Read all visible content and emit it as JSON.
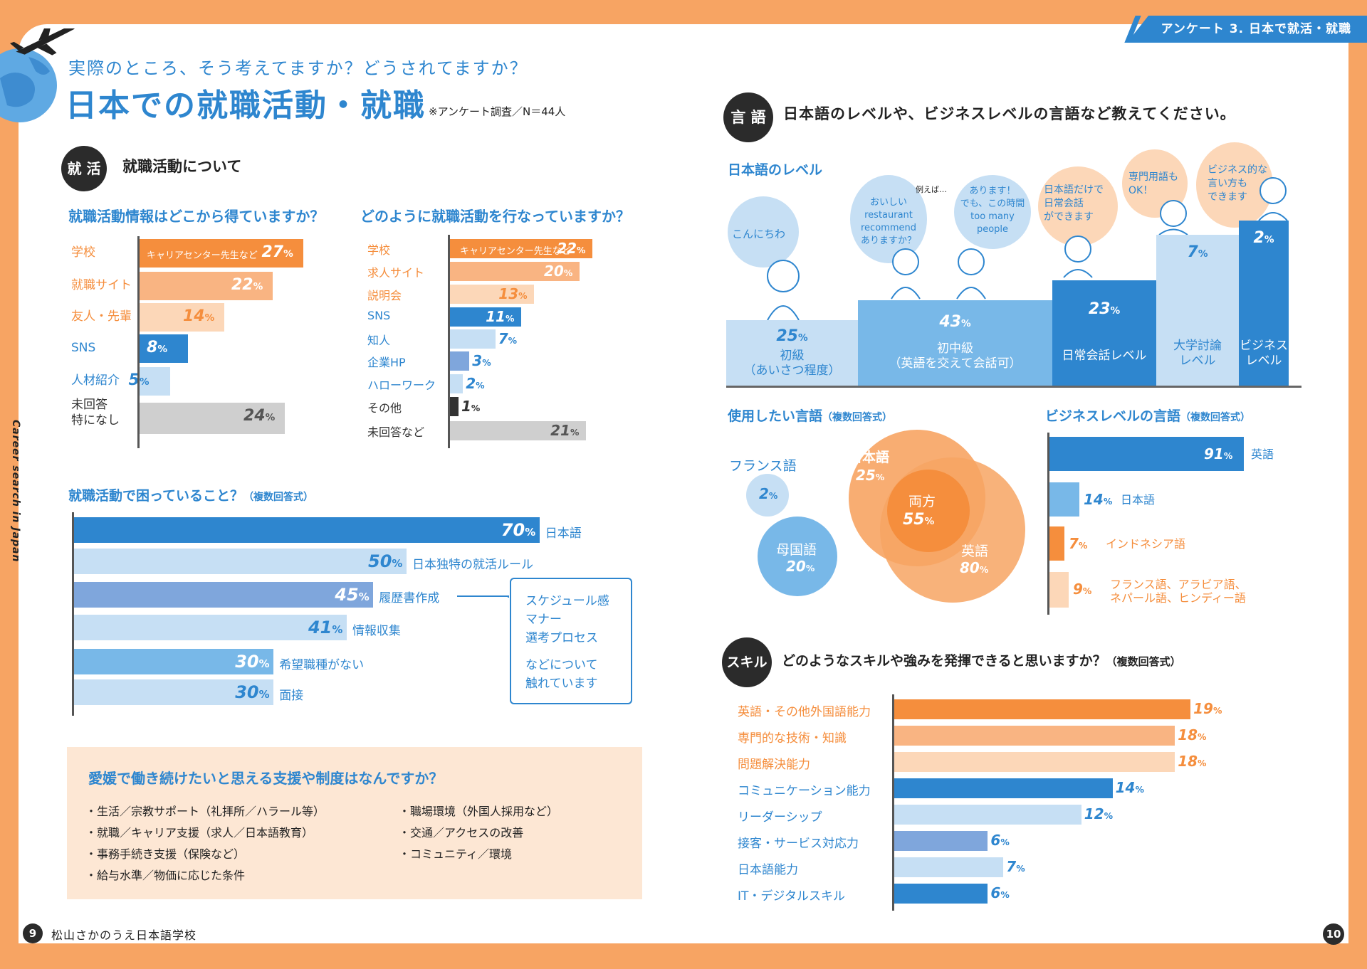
{
  "header": {
    "section_tag": "アンケート 3. 日本で就活・就職"
  },
  "left": {
    "subtitle": "実際のところ、そう考えてますか？どうされてますか？",
    "title": "日本での就職活動・就職",
    "note": "※アンケート調査／N＝44人",
    "side_text": "Career search in Japan",
    "section1": {
      "badge": "就 活",
      "title": "就職活動について"
    },
    "footer": {
      "page": "9",
      "school": "松山さかのうえ日本語学校"
    }
  },
  "right": {
    "lang_badge": "言 語",
    "lang_question": "日本語のレベルや、ビジネスレベルの言語など教えてください。",
    "skill_badge": "スキル",
    "skill_question": "どのようなスキルや強みを発揮できると思いますか？",
    "skill_question_note": "（複数回答式）",
    "footer_page": "10"
  },
  "speech": {
    "b1": "こんにちわ",
    "b2": "おいしい\nrestaurant\nrecommend\nありますか？",
    "b2_pre": "例えば…",
    "b3": "あります！\nでも、この時間\ntoo many\npeople",
    "b4": "日本語だけで\n日常会話\nができます",
    "b5": "専門用語も\nOK！",
    "b6": "ビジネス的な\n言い方も\nできます"
  },
  "aside": {
    "lines": [
      "スケジュール感",
      "マナー",
      "選考プロセス"
    ],
    "footer_lines": [
      "などについて",
      "触れています"
    ]
  },
  "support": {
    "title": "愛媛で働き続けたいと思える支援や制度はなんですか？",
    "col1": [
      "・生活／宗教サポート（礼拝所／ハラール等）",
      "・就職／キャリア支援（求人／日本語教育）",
      "・事務手続き支援（保険など）",
      "・給与水準／物価に応じた条件"
    ],
    "col2": [
      "・職場環境（外国人採用など）",
      "・交通／アクセスの改善",
      "・コミュニティ／環境"
    ]
  },
  "colors": {
    "orange": "#F58E3D",
    "orange_mid": "#F9B482",
    "orange_light": "#FCD7B8",
    "blue": "#2E86CF",
    "blue_mid": "#78B8E8",
    "blue_light": "#C6DFF4",
    "blue_lav": "#7FA6DC",
    "gray": "#CFCFCF",
    "black": "#333333"
  },
  "chart_data": [
    {
      "type": "bar",
      "title": "就職活動情報はどこから得ていますか？",
      "unit": "%",
      "categories": [
        "学校",
        "就職サイト",
        "友人・先輩",
        "SNS",
        "人材紹介",
        "未回答\n特になし"
      ],
      "values": [
        27,
        22,
        14,
        8,
        5,
        24
      ],
      "annotations": {
        "学校": "キャリアセンター先生など"
      }
    },
    {
      "type": "bar",
      "title": "どのように就職活動を行なっていますか？",
      "unit": "%",
      "categories": [
        "学校",
        "求人サイト",
        "説明会",
        "SNS",
        "知人",
        "企業HP",
        "ハローワーク",
        "その他",
        "未回答など"
      ],
      "values": [
        22,
        20,
        13,
        11,
        7,
        3,
        2,
        1,
        21
      ],
      "annotations": {
        "学校": "キャリアセンター先生など"
      }
    },
    {
      "type": "bar",
      "title": "就職活動で困っていること？",
      "title_note": "（複数回答式）",
      "unit": "%",
      "categories": [
        "日本語",
        "日本独特の就活ルール",
        "履歴書作成",
        "情報収集",
        "希望職種がない",
        "面接"
      ],
      "values": [
        70,
        50,
        45,
        41,
        30,
        30
      ]
    },
    {
      "type": "bar",
      "title": "日本語のレベル",
      "unit": "%",
      "categories": [
        "初級\n（あいさつ程度）",
        "初中級\n（英語を交えて会話可）",
        "日常会話レベル",
        "大学討論\nレベル",
        "ビジネス\nレベル"
      ],
      "values": [
        25,
        43,
        23,
        7,
        2
      ]
    },
    {
      "type": "venn",
      "title": "使用したい言語",
      "title_note": "（複数回答式）",
      "unit": "%",
      "sets": [
        {
          "name": "フランス語",
          "value": 2
        },
        {
          "name": "母国語",
          "value": 20
        },
        {
          "name": "日本語",
          "value": 25
        },
        {
          "name": "英語",
          "value": 80
        },
        {
          "name": "両方",
          "value": 55
        }
      ]
    },
    {
      "type": "bar",
      "title": "ビジネスレベルの言語",
      "title_note": "（複数回答式）",
      "unit": "%",
      "categories": [
        "英語",
        "日本語",
        "インドネシア語",
        "フランス語、アラビア語、\nネパール語、ヒンディー語"
      ],
      "values": [
        91,
        14,
        7,
        9
      ]
    },
    {
      "type": "bar",
      "title": "どのようなスキルや強みを発揮できると思いますか？",
      "title_note": "（複数回答式）",
      "unit": "%",
      "categories": [
        "英語・その他外国語能力",
        "専門的な技術・知識",
        "問題解決能力",
        "コミュニケーション能力",
        "リーダーシップ",
        "接客・サービス対応力",
        "日本語能力",
        "IT・デジタルスキル"
      ],
      "values": [
        19,
        18,
        18,
        14,
        12,
        6,
        7,
        6
      ]
    }
  ]
}
